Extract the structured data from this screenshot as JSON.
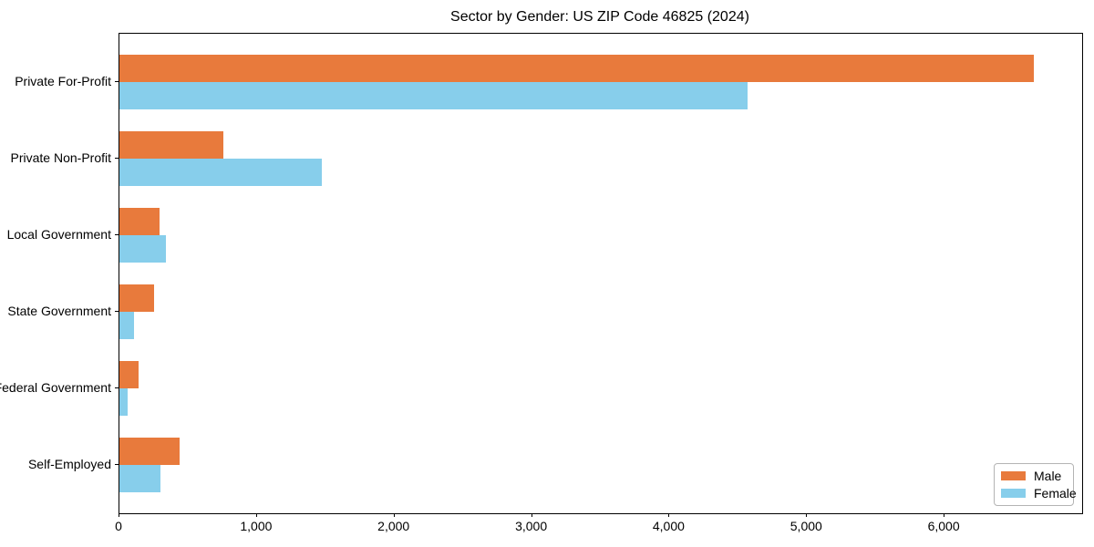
{
  "title": "Sector by Gender: US ZIP Code 46825 (2024)",
  "legend": {
    "position": "lower right",
    "items": [
      {
        "label": "Male",
        "color": "#e87a3c"
      },
      {
        "label": "Female",
        "color": "#87ceeb"
      }
    ]
  },
  "colors": {
    "male": "#e87a3c",
    "female": "#87ceeb",
    "axis": "#000000",
    "background": "#ffffff",
    "legend_border": "#b4b4b4"
  },
  "chart_data": {
    "type": "bar",
    "orientation": "horizontal",
    "title": "Sector by Gender: US ZIP Code 46825 (2024)",
    "categories": [
      "Private For-Profit",
      "Private Non-Profit",
      "Local Government",
      "State Government",
      "Federal Government",
      "Self-Employed"
    ],
    "series": [
      {
        "name": "Male",
        "color": "#e87a3c",
        "values": [
          6650,
          755,
          290,
          250,
          140,
          440
        ]
      },
      {
        "name": "Female",
        "color": "#87ceeb",
        "values": [
          4570,
          1470,
          335,
          105,
          60,
          295
        ]
      }
    ],
    "xlabel": "",
    "ylabel": "",
    "xlim": [
      0,
      7000
    ],
    "x_ticks": [
      0,
      1000,
      2000,
      3000,
      4000,
      5000,
      6000
    ],
    "x_tick_labels": [
      "0",
      "1,000",
      "2,000",
      "3,000",
      "4,000",
      "5,000",
      "6,000"
    ],
    "grid": false,
    "legend_position": "lower right"
  }
}
